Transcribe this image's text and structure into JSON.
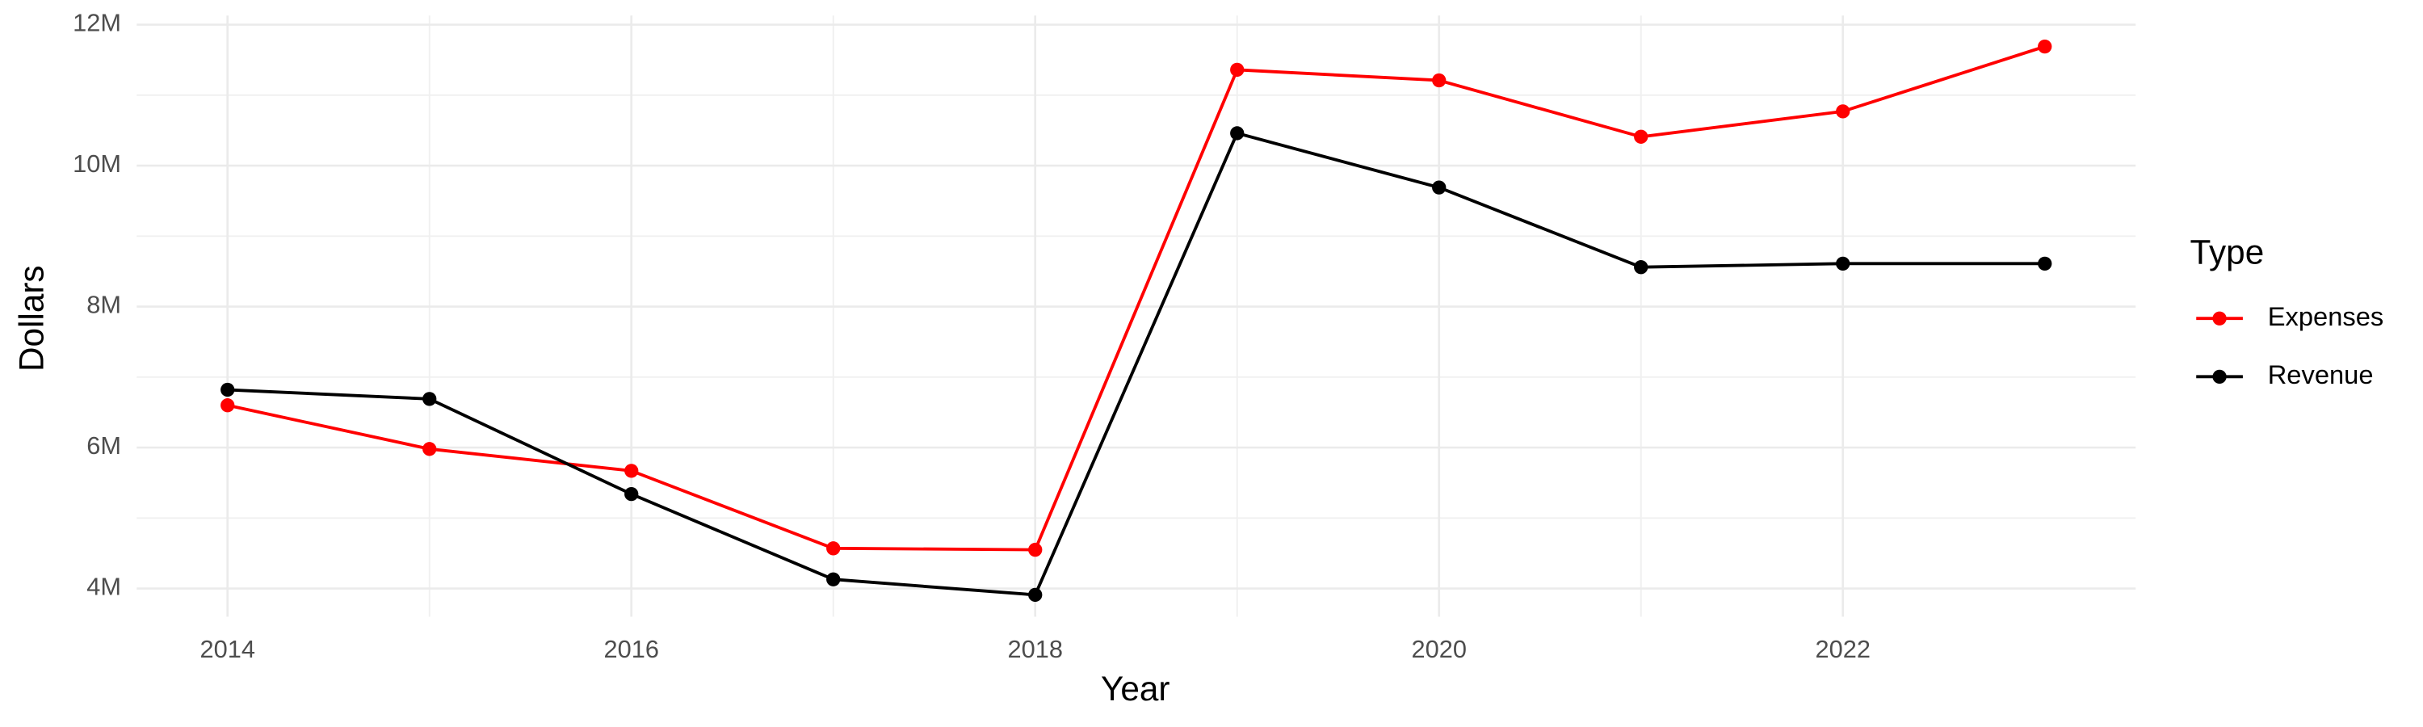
{
  "chart_data": {
    "type": "line",
    "x_label": "Year",
    "y_label": "Dollars",
    "legend_title": "Type",
    "legend_position": "right",
    "grid": true,
    "x": [
      2014,
      2015,
      2016,
      2017,
      2018,
      2019,
      2020,
      2021,
      2022,
      2023
    ],
    "series": [
      {
        "name": "Expenses",
        "color": "#ff0000",
        "values": [
          6600000,
          5980000,
          5670000,
          4570000,
          4550000,
          11360000,
          11210000,
          10410000,
          10770000,
          11690000
        ]
      },
      {
        "name": "Revenue",
        "color": "#000000",
        "values": [
          6820000,
          6690000,
          5340000,
          4130000,
          3910000,
          10460000,
          9690000,
          8560000,
          8610000,
          8610000
        ]
      }
    ],
    "xlim": [
      2013.55,
      2023.45
    ],
    "xticks": [
      2014,
      2016,
      2018,
      2020,
      2022
    ],
    "ylim": [
      3600000,
      12130000
    ],
    "yticks": [
      {
        "value": 4000000,
        "label": "4M"
      },
      {
        "value": 6000000,
        "label": "6M"
      },
      {
        "value": 8000000,
        "label": "8M"
      },
      {
        "value": 10000000,
        "label": "10M"
      },
      {
        "value": 12000000,
        "label": "12M"
      }
    ]
  }
}
